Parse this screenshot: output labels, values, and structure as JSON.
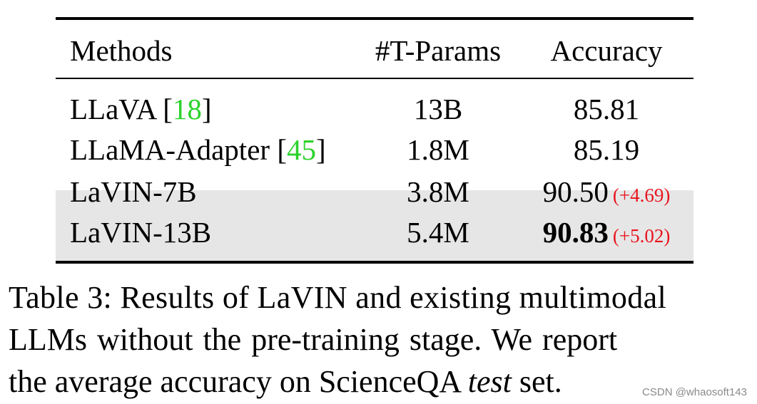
{
  "table": {
    "headers": {
      "methods": "Methods",
      "params": "#T-Params",
      "accuracy": "Accuracy"
    },
    "rows": [
      {
        "method": "LLaVA",
        "cite_open": " [",
        "cite": "18",
        "cite_close": "]",
        "params": "13B",
        "accuracy": "85.81",
        "gain": "",
        "highlighted": false,
        "bold_accuracy": false
      },
      {
        "method": "LLaMA-Adapter",
        "cite_open": " [",
        "cite": "45",
        "cite_close": "]",
        "params": "1.8M",
        "accuracy": "85.19",
        "gain": "",
        "highlighted": false,
        "bold_accuracy": false
      },
      {
        "method": "LaVIN-7B",
        "params": "3.8M",
        "accuracy": "90.50",
        "gain": "(+4.69)",
        "highlighted": true,
        "bold_accuracy": false
      },
      {
        "method": "LaVIN-13B",
        "params": "5.4M",
        "accuracy": "90.83",
        "gain": "(+5.02)",
        "highlighted": true,
        "bold_accuracy": true
      }
    ],
    "colors": {
      "citation": "#2bd22b",
      "gain": "#e8141e",
      "highlight_row": "#e6e6e6"
    }
  },
  "caption": {
    "line1": "Table 3: Results of LaVIN and existing multimodal",
    "line2": "LLMs without the pre-training stage.  We report",
    "line3_pre": "the average accuracy on ScienceQA ",
    "line3_em": "test",
    "line3_post": " set."
  },
  "watermark": "CSDN @whaosoft143"
}
